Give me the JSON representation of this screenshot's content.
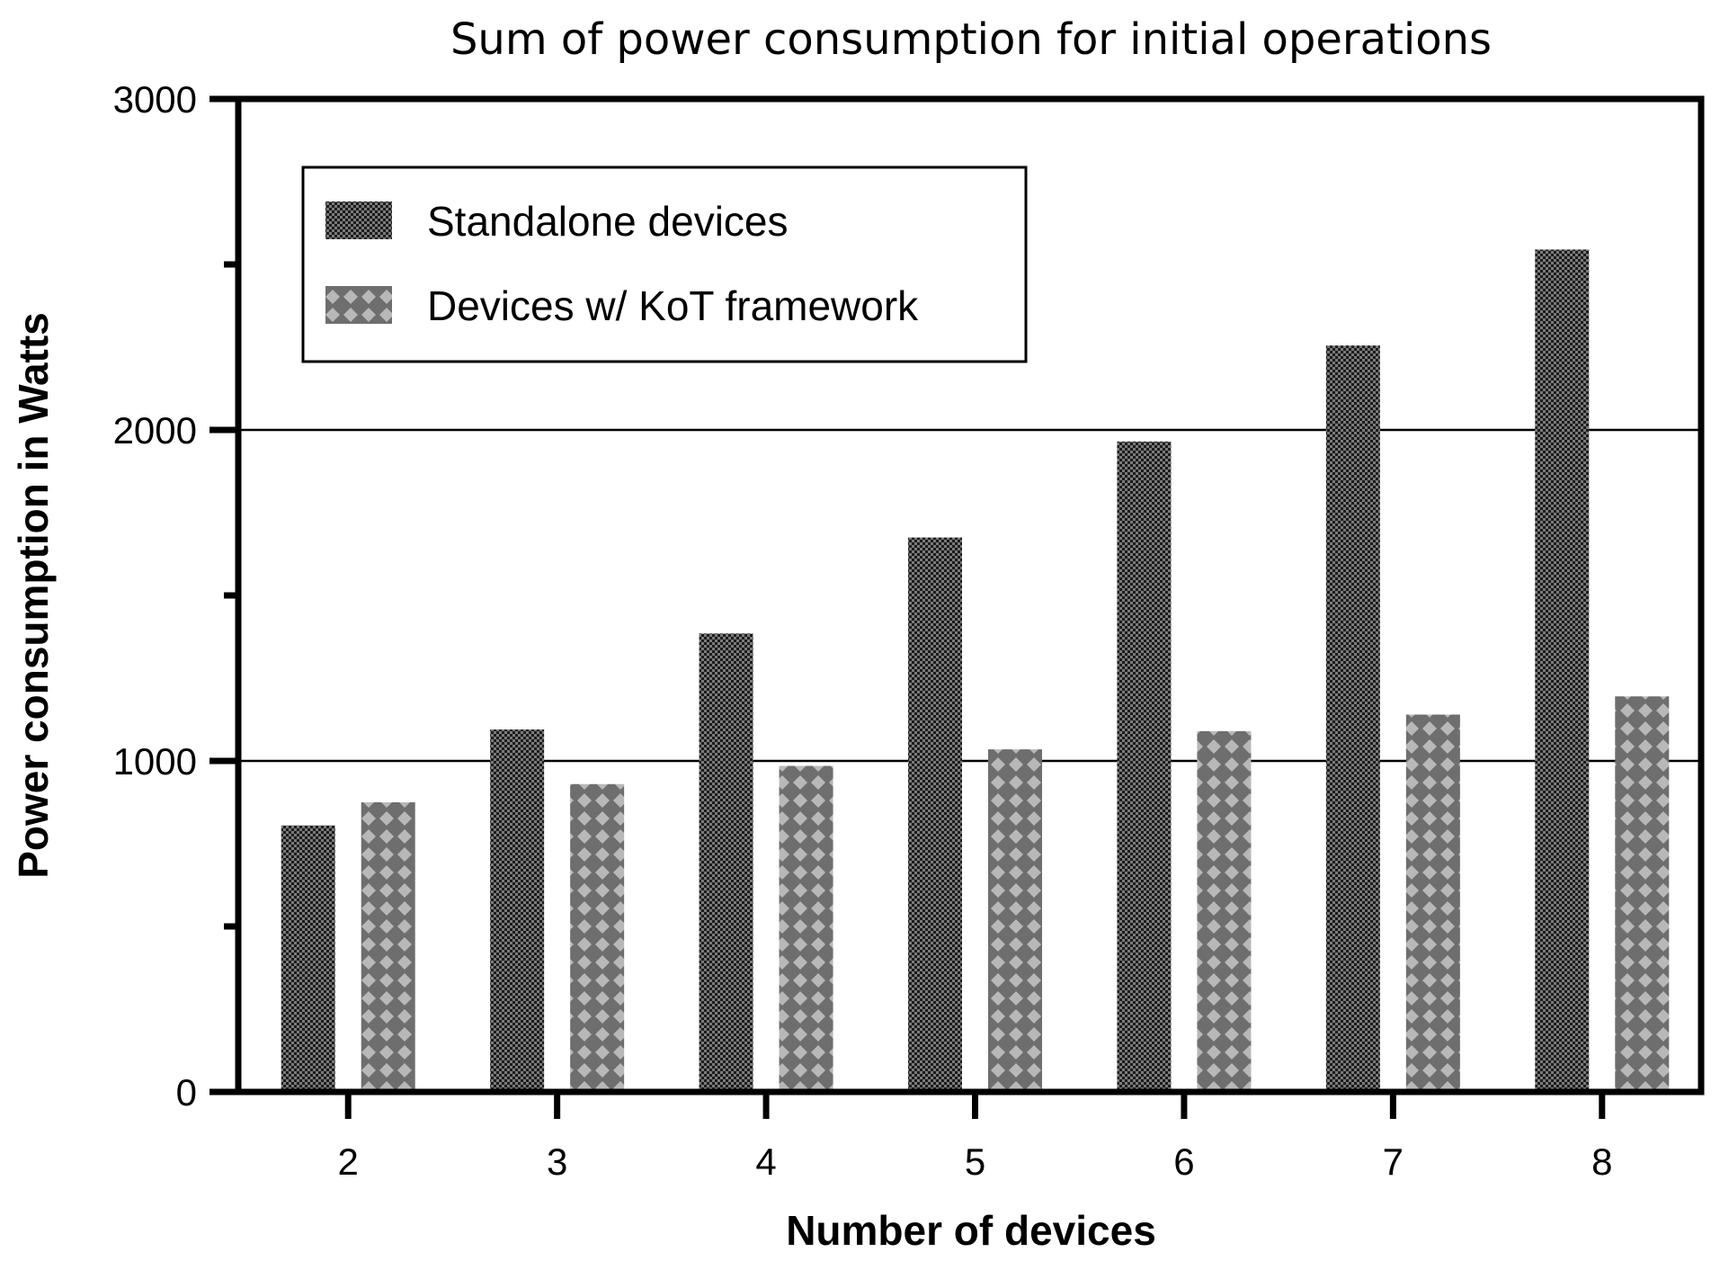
{
  "chart_data": {
    "type": "bar",
    "title": "Sum of power consumption for initial operations",
    "xlabel": "Number of devices",
    "ylabel": "Power consumption in Watts",
    "categories": [
      "2",
      "3",
      "4",
      "5",
      "6",
      "7",
      "8"
    ],
    "series": [
      {
        "name": "Standalone devices",
        "color": "#3a3a3a",
        "values": [
          805,
          1095,
          1385,
          1675,
          1965,
          2255,
          2545
        ]
      },
      {
        "name": "Devices w/ KoT framework",
        "color": "#8c8c8c",
        "values": [
          875,
          930,
          985,
          1035,
          1090,
          1140,
          1195
        ]
      }
    ],
    "ylim": [
      0,
      3000
    ],
    "y_ticks": [
      "0",
      "1000",
      "2000",
      "3000"
    ],
    "y_gridlines": [
      1000,
      2000
    ],
    "y_minor_ticks": [
      500,
      1500,
      2500
    ],
    "legend_position": "top-left"
  }
}
